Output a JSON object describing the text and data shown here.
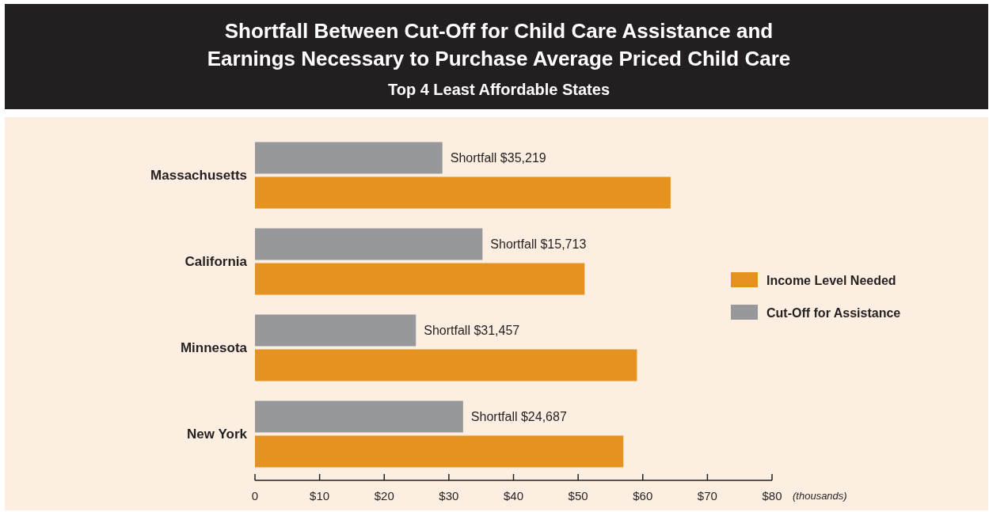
{
  "chart_data": {
    "type": "bar",
    "orientation": "horizontal",
    "title": "Shortfall Between Cut-Off for Child Care Assistance and Earnings Necessary to Purchase Average Priced Child Care",
    "subtitle": "Top 4 Least Affordable States",
    "xlabel": "(thousands)",
    "categories": [
      "Massachusetts",
      "California",
      "Minnesota",
      "New York"
    ],
    "series": [
      {
        "name": "Cut-Off for Assistance",
        "color": "#97989b",
        "values": [
          29.0,
          35.2,
          24.9,
          32.2
        ]
      },
      {
        "name": "Income Level Needed",
        "color": "#e6921e",
        "values": [
          64.3,
          51.0,
          59.1,
          57.0
        ]
      }
    ],
    "xlim": [
      0,
      80
    ],
    "xticks": [
      0,
      {
        "value": 10,
        "label": "$10"
      },
      {
        "value": 20,
        "label": "$20"
      },
      {
        "value": 30,
        "label": "$30"
      },
      {
        "value": 40,
        "label": "$40"
      },
      {
        "value": 50,
        "label": "$50"
      },
      {
        "value": 60,
        "label": "$60"
      },
      {
        "value": 70,
        "label": "$70"
      },
      {
        "value": 80,
        "label": "$80"
      }
    ],
    "annotations": [
      {
        "text": "Shortfall $35,219",
        "x": 29.0,
        "y": "Massachusetts"
      },
      {
        "text": "Shortfall $15,713",
        "x": 35.2,
        "y": "California"
      },
      {
        "text": "Shortfall $31,457",
        "x": 24.9,
        "y": "Minnesota"
      },
      {
        "text": "Shortfall $24,687",
        "x": 32.2,
        "y": "New York"
      }
    ],
    "legend": "right"
  }
}
